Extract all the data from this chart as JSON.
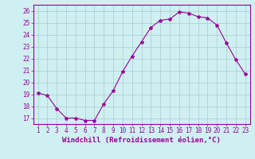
{
  "x": [
    1,
    2,
    3,
    4,
    5,
    6,
    7,
    8,
    9,
    10,
    11,
    12,
    13,
    14,
    15,
    16,
    17,
    18,
    19,
    20,
    21,
    22,
    23
  ],
  "y": [
    19.1,
    18.9,
    17.8,
    17.0,
    17.0,
    16.8,
    16.8,
    18.2,
    19.3,
    20.9,
    22.2,
    23.4,
    24.6,
    25.2,
    25.3,
    25.9,
    25.8,
    25.5,
    25.4,
    24.8,
    23.3,
    21.9,
    20.7
  ],
  "line_color": "#990099",
  "marker": "*",
  "marker_size": 3,
  "background_color": "#cff0f0",
  "grid_color": "#aacccc",
  "xlabel": "Windchill (Refroidissement éolien,°C)",
  "xlabel_color": "#990099",
  "tick_color": "#990099",
  "spine_color": "#990099",
  "ylim": [
    16.5,
    26.5
  ],
  "xlim": [
    0.5,
    23.5
  ],
  "yticks": [
    17,
    18,
    19,
    20,
    21,
    22,
    23,
    24,
    25,
    26
  ],
  "xticks": [
    1,
    2,
    3,
    4,
    5,
    6,
    7,
    8,
    9,
    10,
    11,
    12,
    13,
    14,
    15,
    16,
    17,
    18,
    19,
    20,
    21,
    22,
    23
  ],
  "tick_fontsize": 5.5,
  "xlabel_fontsize": 6.5
}
